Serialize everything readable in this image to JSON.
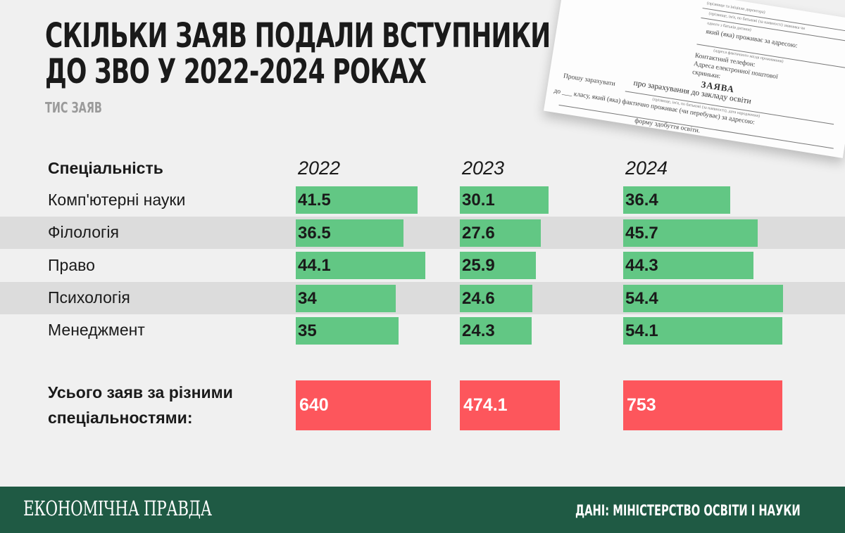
{
  "title_lines": [
    "Скільки заяв подали вступники",
    "до ЗВО у 2022-2024 роках"
  ],
  "subtitle": "ТИС ЗАЯВ",
  "document": {
    "heading": "ЗАЯВА",
    "subheading": "про зарахування до закладу освіти",
    "lines": [
      "(прізвище та ініціали директора)",
      "(прізвище, ім'я, по батькові (за наявності) заявника чи",
      "одного з батьків дитини)",
      "який (яка) проживає за адресою:",
      "(адреса фактичного місця проживання)",
      "Контактний телефон:",
      "Адреса електронної поштової",
      "скриньки:",
      "Прошу зарахувати",
      "до ___ класу, який (яка) фактично проживає (чи перебуває) за адресою:",
      "(прізвище, ім'я, по батькові (за наявності), дата народження)",
      "форму здобуття освіти."
    ]
  },
  "chart_data": {
    "type": "bar",
    "title": "Скільки заяв подали вступники до ЗВО у 2022-2024 роках",
    "unit": "ТИС ЗАЯВ",
    "category_header": "Спеціальність",
    "categories": [
      "Комп'ютерні науки",
      "Філологія",
      "Право",
      "Психологія",
      "Менеджмент"
    ],
    "series": [
      {
        "name": "2022",
        "values": [
          41.5,
          36.5,
          44.1,
          34,
          35
        ],
        "labels": [
          "41.5",
          "36.5",
          "44.1",
          "34",
          "35"
        ]
      },
      {
        "name": "2023",
        "values": [
          30.1,
          27.6,
          25.9,
          24.6,
          24.3
        ],
        "labels": [
          "30.1",
          "27.6",
          "25.9",
          "24.6",
          "24.3"
        ]
      },
      {
        "name": "2024",
        "values": [
          36.4,
          45.7,
          44.3,
          54.4,
          54.1
        ],
        "labels": [
          "36.4",
          "45.7",
          "44.3",
          "54.4",
          "54.1"
        ]
      }
    ],
    "totals_label": [
      "Усього заяв за різними",
      "спеціальностями:"
    ],
    "totals": [
      {
        "year": "2022",
        "value": 640,
        "label": "640"
      },
      {
        "year": "2023",
        "value": 474.1,
        "label": "474.1"
      },
      {
        "year": "2024",
        "value": 753,
        "label": "753"
      }
    ],
    "bar_color": "#62c784",
    "total_color": "#fd565c"
  },
  "footer": {
    "brand": "ЕКОНОМІЧНА ПРАВДА",
    "source": "ДАНІ: МІНІСТЕРСТВО ОСВІТИ І НАУКИ",
    "background": "#1f5a44"
  }
}
